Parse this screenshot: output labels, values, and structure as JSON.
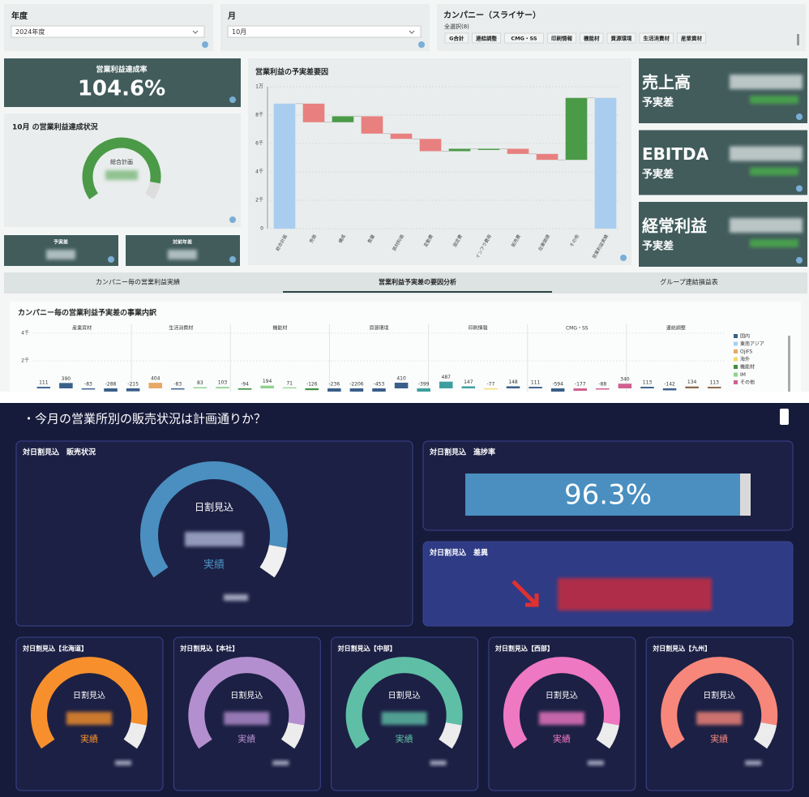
{
  "filters": {
    "year": {
      "label": "年度",
      "value": "2024年度"
    },
    "month": {
      "label": "月",
      "value": "10月"
    },
    "company": {
      "label": "カンパニー（スライサー）",
      "selection": "全選択(8)",
      "options": [
        "G合計",
        "連結調整",
        "CMG・SS",
        "印刷情報",
        "機能材",
        "資源環境",
        "生活消費材",
        "産業資材"
      ]
    }
  },
  "kpi_rate": {
    "title": "営業利益達成率",
    "value": 104.6,
    "value_label": "104.6%"
  },
  "status": {
    "title": "10月 の営業利益達成状況",
    "gauge_label": "総合計画"
  },
  "cards": [
    "予実差",
    "対前年差"
  ],
  "right_cards": [
    {
      "title": "売上高",
      "subtitle": "予実差"
    },
    {
      "title": "EBITDA",
      "subtitle": "予実差"
    },
    {
      "title": "経常利益",
      "subtitle": "予実差"
    }
  ],
  "tabs": [
    "カンパニー毎の営業利益実績",
    "営業利益予実差の要因分析",
    "グループ連結損益表"
  ],
  "chart_data": [
    {
      "type": "waterfall",
      "title": "営業利益の予実差要因",
      "categories": [
        "総合計画",
        "売価",
        "構成",
        "数量",
        "原材料価",
        "変動費",
        "固定費",
        "インフラ費用",
        "販売費",
        "在庫価値",
        "その他",
        "営業利益実績"
      ],
      "values": [
        8810,
        -1310,
        420,
        -1224,
        -370,
        -867,
        171,
        0,
        -363,
        -421,
        4368,
        9214
      ],
      "measure": [
        "total",
        "relative",
        "relative",
        "relative",
        "relative",
        "relative",
        "relative",
        "relative",
        "relative",
        "relative",
        "relative",
        "total"
      ],
      "colors": {
        "total": "#a9cdee",
        "increase": "#4a9a47",
        "decrease": "#e88080"
      },
      "ylim": [
        0,
        10000
      ],
      "yticks": [
        0,
        {
          "value": 2000,
          "label": "2千"
        },
        {
          "value": 4000,
          "label": "4千"
        },
        {
          "value": 6000,
          "label": "6千"
        },
        {
          "value": 8000,
          "label": "8千"
        },
        {
          "value": 10000,
          "label": "1万"
        }
      ],
      "grid": true
    },
    {
      "type": "bar",
      "title": "カンパニー毎の営業利益予実差の事業内訳",
      "facets": [
        "産業資材",
        "生活消費材",
        "機能材",
        "資源環境",
        "印刷情報",
        "CMG・SS",
        "連結調整"
      ],
      "values": [
        111,
        390,
        -83,
        -288,
        -215,
        404,
        -83,
        83,
        103,
        -94,
        194,
        71,
        -126,
        -236,
        -2206,
        -453,
        410,
        -399,
        487,
        147,
        -77,
        148,
        111,
        -594,
        -177,
        -88,
        340,
        113,
        -142,
        134,
        113
      ],
      "colors": [
        "#3a5f8a",
        "#3a5f8a",
        "#3a5f8a",
        "#3a5f8a",
        "#3a5f8a",
        "#e8a868",
        "#3a5f8a",
        "#8fd18f",
        "#8fd18f",
        "#3f8f3f",
        "#8fd18f",
        "#8fd18f",
        "#3f8f3f",
        "#3a5f8a",
        "#3a5f8a",
        "#3a5f8a",
        "#3a5f8a",
        "#3f9f9f",
        "#3f9f9f",
        "#3f9f9f",
        "#f3d86a",
        "#3a5f8a",
        "#3a5f8a",
        "#3a5f8a",
        "#d06090",
        "#d06090",
        "#d06090",
        "#3a5f8a",
        "#3a5f8a",
        "#8a6a4a",
        "#8a6a4a"
      ],
      "legend": [
        {
          "name": "国内",
          "color": "#3a5f8a"
        },
        {
          "name": "東南アジア",
          "color": "#a8d0ee"
        },
        {
          "name": "OjiFS",
          "color": "#e8a868"
        },
        {
          "name": "海外",
          "color": "#f3d86a"
        },
        {
          "name": "機能材",
          "color": "#3f8f3f"
        },
        {
          "name": "IM",
          "color": "#8fd18f"
        },
        {
          "name": "その他",
          "color": "#d06090"
        }
      ],
      "ylim": [
        -4000,
        4000
      ],
      "yticks": [
        {
          "value": 2000,
          "label": "2千"
        },
        {
          "value": 4000,
          "label": "4千"
        }
      ]
    }
  ],
  "section2": {
    "question": "・今月の営業所別の販売状況は計画通りか？",
    "target_label": "日割見込",
    "actual_label": "実績",
    "main_gauge": {
      "title": "対日割見込　販売状況",
      "color": "#4a8fc0"
    },
    "progress": {
      "title": "対日割見込　進捗率",
      "value": 96.3,
      "value_label": "96.3%",
      "xlim": [
        0,
        100
      ],
      "color": "#4a8fc0"
    },
    "diff": {
      "title": "対日割見込　差異"
    },
    "regions": [
      {
        "title": "対日割見込【北海道】",
        "color": "#f7902c"
      },
      {
        "title": "対日割見込【本社】",
        "color": "#b48fcf"
      },
      {
        "title": "対日割見込【中部】",
        "color": "#5fbfa6"
      },
      {
        "title": "対日割見込【西部】",
        "color": "#ef78c2"
      },
      {
        "title": "対日割見込【九州】",
        "color": "#f7877a"
      }
    ]
  }
}
